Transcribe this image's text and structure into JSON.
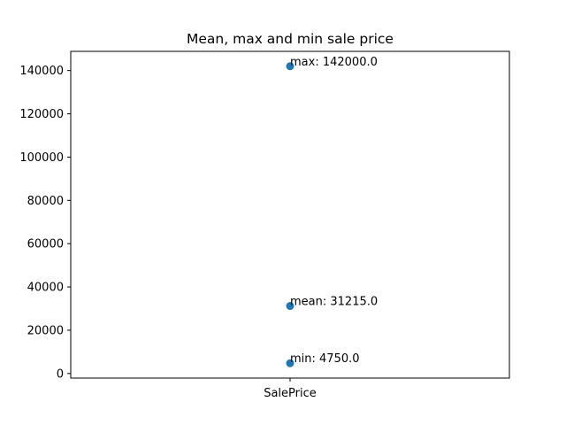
{
  "chart_data": {
    "type": "scatter",
    "title": "Mean, max and min sale price",
    "xlabel": "",
    "ylabel": "",
    "categories": [
      "SalePrice"
    ],
    "points": [
      {
        "category": "SalePrice",
        "y": 142000.0,
        "label": "max: 142000.0"
      },
      {
        "category": "SalePrice",
        "y": 31215.0,
        "label": "mean: 31215.0"
      },
      {
        "category": "SalePrice",
        "y": 4750.0,
        "label": "min: 4750.0"
      }
    ],
    "yticks": [
      {
        "value": 0,
        "label": "0"
      },
      {
        "value": 20000,
        "label": "20000"
      },
      {
        "value": 40000,
        "label": "40000"
      },
      {
        "value": 60000,
        "label": "60000"
      },
      {
        "value": 80000,
        "label": "80000"
      },
      {
        "value": 100000,
        "label": "100000"
      },
      {
        "value": 120000,
        "label": "120000"
      },
      {
        "value": 140000,
        "label": "140000"
      }
    ],
    "ylim": [
      -2112.5,
      148862.5
    ],
    "grid": false,
    "legend": "none",
    "marker_color": "#1f77b4"
  }
}
